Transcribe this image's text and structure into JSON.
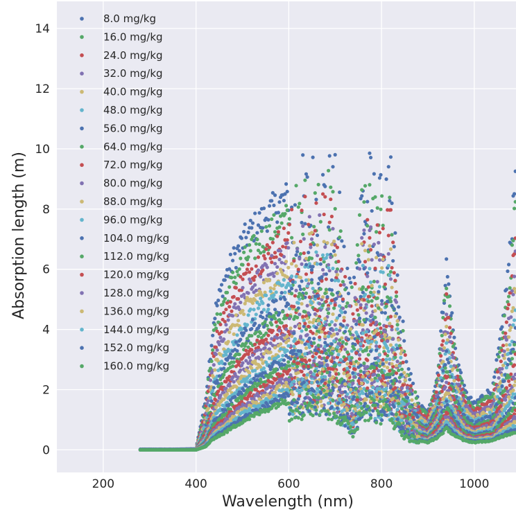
{
  "chart_data": {
    "type": "scatter",
    "xlabel": "Wavelength (nm)",
    "ylabel": "Absorption length (m)",
    "xlim": [
      100,
      1090
    ],
    "ylim": [
      -0.75,
      14.9
    ],
    "xticks": [
      200,
      400,
      600,
      800,
      1000
    ],
    "yticks": [
      0,
      2,
      4,
      6,
      8,
      10,
      12,
      14
    ],
    "xtick_labels": [
      "200",
      "400",
      "600",
      "800",
      "1000"
    ],
    "ytick_labels": [
      "0",
      "2",
      "4",
      "6",
      "8",
      "10",
      "12",
      "14"
    ],
    "grid": true,
    "legend_position": "top-left",
    "background": "#EAEAF2",
    "palette": [
      "#4C72B0",
      "#55A868",
      "#C44E52",
      "#8172B2",
      "#CCB974",
      "#64B5CD"
    ],
    "x_range_data": [
      280,
      1090
    ],
    "series_profile": {
      "wavelength": [
        280,
        300,
        350,
        400,
        420,
        440,
        460,
        480,
        500,
        520,
        540,
        560,
        580,
        600,
        620,
        640,
        660,
        680,
        700,
        720,
        740,
        760,
        780,
        800,
        820,
        840,
        860,
        880,
        900,
        920,
        940,
        960,
        980,
        1000,
        1020,
        1040,
        1060,
        1080,
        1090
      ],
      "max_length_at_8mgkg": [
        0.02,
        0.02,
        0.02,
        0.03,
        1.6,
        4.5,
        5.6,
        6.3,
        6.9,
        7.3,
        7.6,
        7.9,
        8.2,
        8.4,
        8.5,
        8.8,
        9.1,
        9.0,
        8.6,
        6.4,
        5.5,
        9.6,
        8.6,
        8.0,
        8.5,
        4.6,
        2.4,
        1.5,
        1.2,
        2.4,
        6.1,
        3.2,
        1.9,
        1.5,
        1.8,
        2.0,
        4.0,
        7.0,
        10.1
      ],
      "min_length_at_160mgkg": [
        0.0,
        0.0,
        0.0,
        0.0,
        0.1,
        0.4,
        0.55,
        0.75,
        0.95,
        1.1,
        1.25,
        1.4,
        1.55,
        1.65,
        1.75,
        1.85,
        1.9,
        1.85,
        1.6,
        1.0,
        0.7,
        1.8,
        1.6,
        1.5,
        1.5,
        0.8,
        0.5,
        0.3,
        0.25,
        0.4,
        0.7,
        0.45,
        0.3,
        0.25,
        0.28,
        0.3,
        0.45,
        0.55,
        0.6
      ]
    },
    "series": [
      {
        "name": "8.0 mg/kg",
        "color": "#4C72B0"
      },
      {
        "name": "16.0 mg/kg",
        "color": "#55A868"
      },
      {
        "name": "24.0 mg/kg",
        "color": "#C44E52"
      },
      {
        "name": "32.0 mg/kg",
        "color": "#8172B2"
      },
      {
        "name": "40.0 mg/kg",
        "color": "#CCB974"
      },
      {
        "name": "48.0 mg/kg",
        "color": "#64B5CD"
      },
      {
        "name": "56.0 mg/kg",
        "color": "#4C72B0"
      },
      {
        "name": "64.0 mg/kg",
        "color": "#55A868"
      },
      {
        "name": "72.0 mg/kg",
        "color": "#C44E52"
      },
      {
        "name": "80.0 mg/kg",
        "color": "#8172B2"
      },
      {
        "name": "88.0 mg/kg",
        "color": "#CCB974"
      },
      {
        "name": "96.0 mg/kg",
        "color": "#64B5CD"
      },
      {
        "name": "104.0 mg/kg",
        "color": "#4C72B0"
      },
      {
        "name": "112.0 mg/kg",
        "color": "#55A868"
      },
      {
        "name": "120.0 mg/kg",
        "color": "#C44E52"
      },
      {
        "name": "128.0 mg/kg",
        "color": "#8172B2"
      },
      {
        "name": "136.0 mg/kg",
        "color": "#CCB974"
      },
      {
        "name": "144.0 mg/kg",
        "color": "#64B5CD"
      },
      {
        "name": "152.0 mg/kg",
        "color": "#4C72B0"
      },
      {
        "name": "160.0 mg/kg",
        "color": "#55A868"
      }
    ]
  }
}
